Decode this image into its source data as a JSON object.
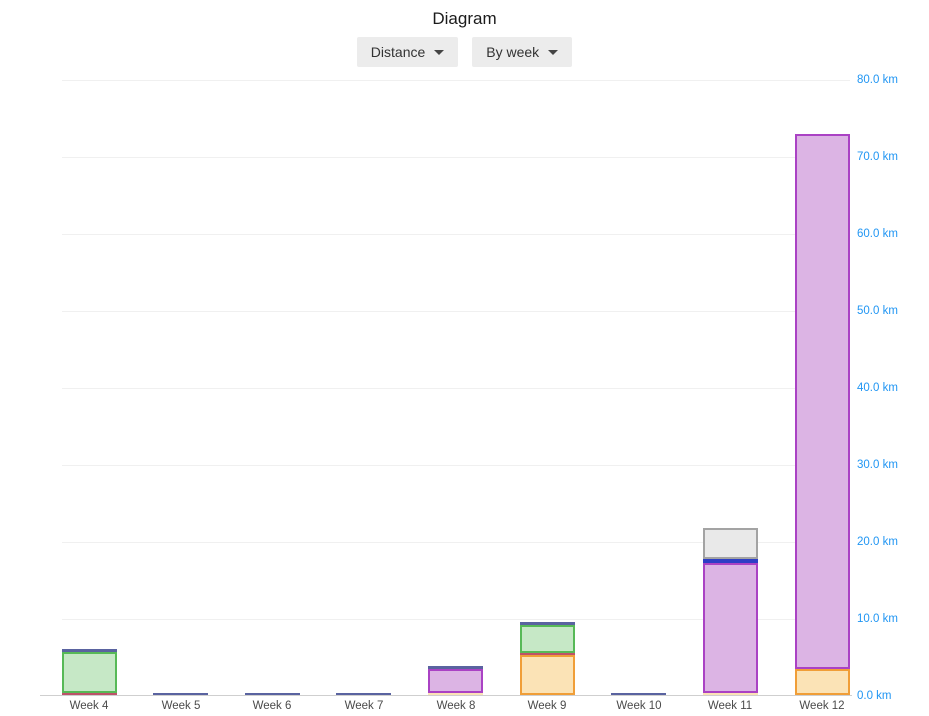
{
  "page": {
    "title": "Diagram"
  },
  "controls": {
    "metric_dropdown": {
      "label": "Distance"
    },
    "grouping_dropdown": {
      "label": "By week"
    }
  },
  "chart_data": {
    "type": "bar",
    "stacked": true,
    "title": "Diagram",
    "metric": "Distance",
    "grouping": "By week",
    "unit": "km",
    "ylim": [
      0,
      80
    ],
    "yticks": [
      0,
      10,
      20,
      30,
      40,
      50,
      60,
      70,
      80
    ],
    "ytick_labels": [
      "0.0 km",
      "10.0 km",
      "20.0 km",
      "30.0 km",
      "40.0 km",
      "50.0 km",
      "60.0 km",
      "70.0 km",
      "80.0 km"
    ],
    "ytick_label_color": "#2196f3",
    "grid": true,
    "legend": "none",
    "categories": [
      "Week 4",
      "Week 5",
      "Week 6",
      "Week 7",
      "Week 8",
      "Week 9",
      "Week 10",
      "Week 11",
      "Week 12"
    ],
    "palette": {
      "orange": {
        "fill": "#fbe3b6",
        "border": "#f09e38"
      },
      "red": {
        "fill": "#bd5269",
        "border": "#bd5269"
      },
      "green": {
        "fill": "#c6e8c6",
        "border": "#57b957"
      },
      "purple": {
        "fill": "#dcb4e4",
        "border": "#aa42c4"
      },
      "navy": {
        "fill": "#5a63a0",
        "border": "#5a63a0"
      },
      "blue": {
        "fill": "#2e3ec5",
        "border": "#2e3ec5"
      },
      "gray": {
        "fill": "#e9e9e9",
        "border": "#a3a3a3"
      }
    },
    "weeks": [
      {
        "label": "Week 4",
        "total_km": 6.0,
        "segments": [
          {
            "series": "red",
            "km": 0.3
          },
          {
            "series": "green",
            "km": 5.3
          },
          {
            "series": "navy",
            "km": 0.4
          }
        ]
      },
      {
        "label": "Week 5",
        "total_km": 0.3,
        "segments": [
          {
            "series": "navy",
            "km": 0.3
          }
        ]
      },
      {
        "label": "Week 6",
        "total_km": 0.3,
        "segments": [
          {
            "series": "navy",
            "km": 0.3
          }
        ]
      },
      {
        "label": "Week 7",
        "total_km": 0.3,
        "segments": [
          {
            "series": "navy",
            "km": 0.3
          }
        ]
      },
      {
        "label": "Week 8",
        "total_km": 3.8,
        "segments": [
          {
            "series": "orange",
            "km": 0.3
          },
          {
            "series": "purple",
            "km": 3.1
          },
          {
            "series": "navy",
            "km": 0.4
          }
        ]
      },
      {
        "label": "Week 9",
        "total_km": 9.5,
        "segments": [
          {
            "series": "orange",
            "km": 5.2
          },
          {
            "series": "red",
            "km": 0.3
          },
          {
            "series": "green",
            "km": 3.6
          },
          {
            "series": "navy",
            "km": 0.4
          }
        ]
      },
      {
        "label": "Week 10",
        "total_km": 0.3,
        "segments": [
          {
            "series": "navy",
            "km": 0.3
          }
        ]
      },
      {
        "label": "Week 11",
        "total_km": 21.7,
        "segments": [
          {
            "series": "orange",
            "km": 0.3
          },
          {
            "series": "purple",
            "km": 16.9
          },
          {
            "series": "blue",
            "km": 0.5
          },
          {
            "series": "gray",
            "km": 4.0
          }
        ]
      },
      {
        "label": "Week 12",
        "total_km": 72.9,
        "segments": [
          {
            "series": "orange",
            "km": 3.4
          },
          {
            "series": "purple",
            "km": 69.5
          }
        ]
      }
    ]
  }
}
